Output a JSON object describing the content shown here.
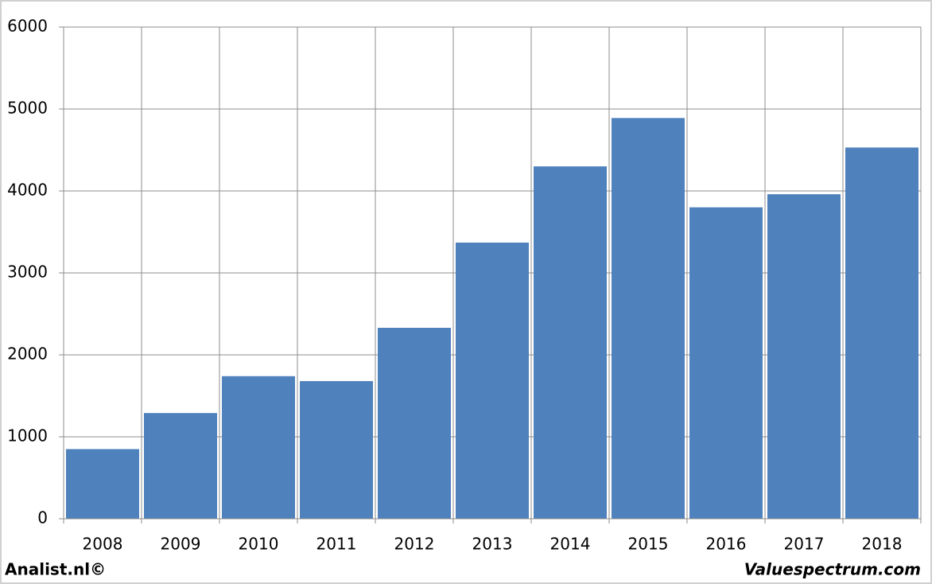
{
  "chart_data": {
    "type": "bar",
    "categories": [
      "2008",
      "2009",
      "2010",
      "2011",
      "2012",
      "2013",
      "2014",
      "2015",
      "2016",
      "2017",
      "2018"
    ],
    "values": [
      850,
      1290,
      1740,
      1680,
      2330,
      3370,
      4300,
      4890,
      3800,
      3960,
      4530
    ],
    "color": "#4f81bd",
    "ylim": [
      0,
      6000
    ],
    "yticks": [
      0,
      1000,
      2000,
      3000,
      4000,
      5000,
      6000
    ],
    "grid": true,
    "credits": [
      "Analist.nl©",
      "Valuespectrum.com"
    ]
  }
}
